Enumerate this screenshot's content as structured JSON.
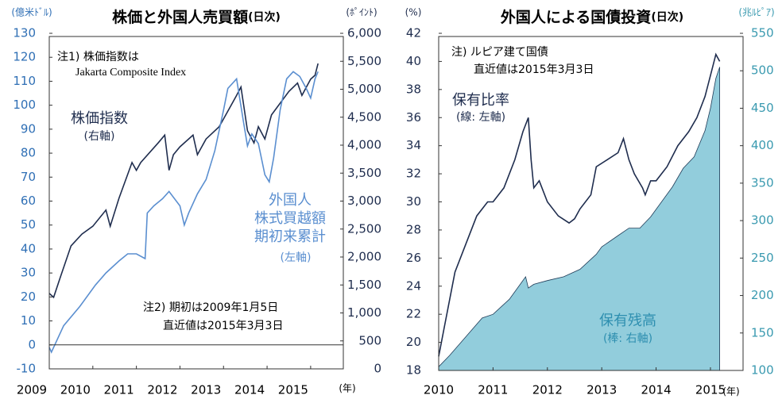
{
  "chart_data": [
    {
      "type": "line",
      "title": "株価と外国人売買額",
      "title_note": "(日次)",
      "y_label": "(億米ﾄﾞﾙ)",
      "y2_label": "(ﾎﾟｲﾝﾄ)",
      "x_label": "(年)",
      "xlim": [
        2009,
        2015.75
      ],
      "xticks": [
        2009,
        2010,
        2011,
        2012,
        2013,
        2014,
        2015
      ],
      "ylim": [
        -10,
        130
      ],
      "yticks": [
        -10,
        0,
        10,
        20,
        30,
        40,
        50,
        60,
        70,
        80,
        90,
        100,
        110,
        120,
        130
      ],
      "y2lim": [
        0,
        6000
      ],
      "y2ticks": [
        0,
        500,
        {
          "value": 1000,
          "label": "1,000"
        },
        {
          "value": 1500,
          "label": "1,500"
        },
        {
          "value": 2000,
          "label": "2,000"
        },
        {
          "value": 2500,
          "label": "2,500"
        },
        {
          "value": 3000,
          "label": "3,000"
        },
        {
          "value": 3500,
          "label": "3,500"
        },
        {
          "value": 4000,
          "label": "4,000"
        },
        {
          "value": 4500,
          "label": "4,500"
        },
        {
          "value": 5000,
          "label": "5,000"
        },
        {
          "value": 5500,
          "label": "5,500"
        },
        {
          "value": 6000,
          "label": "6,000"
        }
      ],
      "y_color": "#2f6fb5",
      "y2_color": "#1f2d4e",
      "series": [
        {
          "name": "株価指数",
          "axis_note": "(右軸)",
          "color": "#1f2d4e",
          "axis": "y2",
          "x": [
            2009.0,
            2009.1,
            2009.25,
            2009.5,
            2009.75,
            2010.0,
            2010.3,
            2010.4,
            2010.6,
            2010.9,
            2011.0,
            2011.1,
            2011.5,
            2011.65,
            2011.75,
            2011.85,
            2012.0,
            2012.3,
            2012.4,
            2012.6,
            2012.9,
            2013.0,
            2013.3,
            2013.4,
            2013.55,
            2013.7,
            2013.8,
            2013.95,
            2014.1,
            2014.3,
            2014.5,
            2014.7,
            2014.8,
            2015.0,
            2015.1,
            2015.17
          ],
          "values": [
            1350,
            1280,
            1630,
            2200,
            2410,
            2550,
            2840,
            2550,
            3050,
            3690,
            3550,
            3690,
            4040,
            4180,
            3550,
            3830,
            3970,
            4180,
            3830,
            4110,
            4330,
            4470,
            4890,
            5040,
            4260,
            4040,
            4330,
            4110,
            4540,
            4750,
            4960,
            5110,
            4890,
            5180,
            5250,
            5460
          ]
        },
        {
          "name": "外国人株式買越額期初来累計",
          "axis_note": "(左軸)",
          "color": "#5b8fd0",
          "axis": "y",
          "x": [
            2009.0,
            2009.05,
            2009.33,
            2009.7,
            2010.06,
            2010.3,
            2010.6,
            2010.8,
            2011.0,
            2011.2,
            2011.25,
            2011.4,
            2011.6,
            2011.75,
            2012.0,
            2012.1,
            2012.2,
            2012.4,
            2012.6,
            2012.8,
            2013.0,
            2013.1,
            2013.3,
            2013.45,
            2013.55,
            2013.65,
            2013.8,
            2013.95,
            2014.05,
            2014.15,
            2014.3,
            2014.45,
            2014.6,
            2014.75,
            2014.9,
            2015.0,
            2015.1,
            2015.17
          ],
          "values": [
            -1,
            -3,
            8,
            16,
            25,
            30,
            35,
            38,
            38,
            36,
            55,
            58,
            61,
            64,
            58,
            50,
            55,
            63,
            69,
            81,
            98,
            107,
            111,
            94,
            83,
            88,
            84,
            71,
            68,
            78,
            98,
            111,
            114,
            112,
            107,
            103,
            111,
            114
          ]
        }
      ],
      "annotations": [
        "注1) 株価指数は",
        "Jakarta Composite Index",
        "注2) 期初は2009年1月5日",
        "直近値は2015年3月3日"
      ]
    },
    {
      "type": "line",
      "title": "外国人による国債投資",
      "title_note": "(日次)",
      "y_label": "(%)",
      "y2_label": "(兆ﾙﾋﾟｱ)",
      "x_label": "(年)",
      "xlim": [
        2010,
        2015.6
      ],
      "xticks": [
        2010,
        2011,
        2012,
        2013,
        2014,
        2015
      ],
      "ylim": [
        18,
        42
      ],
      "yticks": [
        18,
        20,
        22,
        24,
        26,
        28,
        30,
        32,
        34,
        36,
        38,
        40,
        42
      ],
      "y2lim": [
        100,
        550
      ],
      "y2ticks": [
        100,
        150,
        200,
        250,
        300,
        350,
        400,
        450,
        500,
        550
      ],
      "y_color": "#1f2d4e",
      "y2_color": "#3a9ab0",
      "series": [
        {
          "name": "保有残高",
          "axis_note": "(棒: 右軸)",
          "type": "area",
          "color": "#92cddc",
          "axis": "y2",
          "x": [
            2010.0,
            2010.2,
            2010.5,
            2010.8,
            2011.0,
            2011.3,
            2011.5,
            2011.6,
            2011.65,
            2011.75,
            2012.0,
            2012.3,
            2012.6,
            2012.9,
            2013.0,
            2013.3,
            2013.5,
            2013.7,
            2013.9,
            2014.0,
            2014.3,
            2014.5,
            2014.7,
            2014.9,
            2015.0,
            2015.1,
            2015.17
          ],
          "values": [
            105,
            120,
            145,
            170,
            175,
            195,
            215,
            225,
            210,
            215,
            220,
            225,
            235,
            255,
            265,
            280,
            290,
            290,
            305,
            315,
            345,
            370,
            385,
            420,
            450,
            490,
            505
          ]
        },
        {
          "name": "保有比率",
          "axis_note": "(線: 左軸)",
          "type": "line",
          "color": "#1f2d4e",
          "axis": "y",
          "x": [
            2010.0,
            2010.1,
            2010.3,
            2010.5,
            2010.7,
            2010.9,
            2011.0,
            2011.2,
            2011.4,
            2011.55,
            2011.65,
            2011.7,
            2011.75,
            2011.85,
            2012.0,
            2012.2,
            2012.4,
            2012.5,
            2012.6,
            2012.8,
            2012.9,
            2013.1,
            2013.3,
            2013.4,
            2013.5,
            2013.6,
            2013.75,
            2013.8,
            2013.9,
            2014.0,
            2014.2,
            2014.4,
            2014.6,
            2014.75,
            2014.9,
            2015.0,
            2015.1,
            2015.17
          ],
          "values": [
            19,
            21,
            25,
            27,
            29,
            30,
            30,
            31,
            33,
            35,
            36,
            33,
            31,
            31.5,
            30,
            29,
            28.5,
            28.8,
            29.5,
            30.5,
            32.5,
            33,
            33.5,
            34.5,
            33,
            32,
            31,
            30.5,
            31.5,
            31.5,
            32.5,
            34,
            35,
            36,
            37.5,
            39,
            40.5,
            40
          ]
        }
      ],
      "annotations": [
        "注) ルピア建て国債",
        "直近値は2015年3月3日"
      ]
    }
  ]
}
